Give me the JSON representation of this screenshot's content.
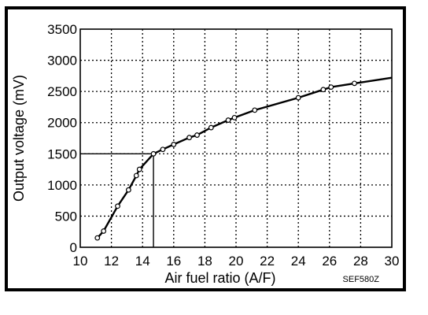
{
  "chart_data": {
    "type": "line",
    "title": "",
    "xlabel": "Air fuel ratio (A/F)",
    "ylabel": "Output voltage (mV)",
    "figure_code": "SEF580Z",
    "xlim": [
      10,
      30
    ],
    "ylim": [
      0,
      3500
    ],
    "x_ticks": [
      10,
      12,
      14,
      16,
      18,
      20,
      22,
      24,
      26,
      28,
      30
    ],
    "y_ticks": [
      0,
      500,
      1000,
      1500,
      2000,
      2500,
      3000,
      3500
    ],
    "grid": "dotted",
    "line_color": "#000000",
    "series": [
      {
        "x": [
          11.1,
          11.5,
          12.4,
          13.1,
          13.6,
          13.8,
          14.7,
          15.3,
          16.0,
          17.0,
          17.5,
          18.4,
          19.5,
          19.9,
          21.2,
          24.0,
          25.6,
          26.1,
          27.6,
          30.0
        ],
        "y": [
          150,
          260,
          660,
          920,
          1150,
          1250,
          1500,
          1570,
          1650,
          1760,
          1800,
          1920,
          2040,
          2080,
          2200,
          2400,
          2530,
          2570,
          2630,
          2720
        ],
        "markers": [
          true,
          true,
          true,
          true,
          true,
          true,
          true,
          true,
          true,
          true,
          true,
          true,
          true,
          true,
          true,
          true,
          true,
          true,
          true,
          false
        ]
      }
    ],
    "reference_lines": {
      "horizontal_y": 1500,
      "vertical_x": 14.7
    }
  }
}
